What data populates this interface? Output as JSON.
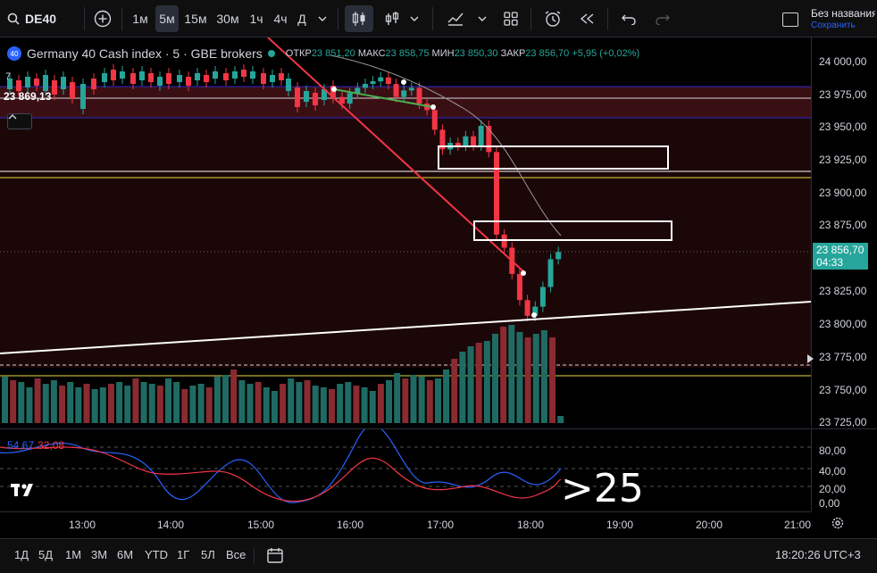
{
  "toolbar": {
    "symbol": "DE40",
    "intervals": [
      "1м",
      "5м",
      "15м",
      "30м",
      "1ч",
      "4ч",
      "Д"
    ],
    "active_interval": "5м",
    "account_name": "Без названия",
    "account_status": "Сохранить"
  },
  "legend": {
    "badge": "40",
    "title": "Germany 40 Cash index · 5 · GBE brokers",
    "open_label": "ОТКР",
    "open": "23 851,20",
    "high_label": "МАКС",
    "high": "23 858,75",
    "low_label": "МИН",
    "low": "23 850,30",
    "close_label": "ЗАКР",
    "close": "23 856,70",
    "change": "+5,95 (+0,02%)",
    "sub_count": "7"
  },
  "level_label": "23 869,13",
  "price_axis": {
    "ticks": [
      "24 000,00",
      "23 975,00",
      "23 950,00",
      "23 925,00",
      "23 900,00",
      "23 875,00",
      "23 850,00",
      "23 825,00",
      "23 800,00",
      "23 775,00",
      "23 750,00",
      "23 725,00"
    ],
    "current_price": "23 856,70",
    "countdown": "04:33"
  },
  "oscillator": {
    "value_k": "54,67",
    "value_d": "32,08",
    "ticks": [
      "80,00",
      "40,00",
      "20,00",
      "0,00"
    ],
    "annotation": ">25"
  },
  "time_axis": {
    "ticks": [
      "13:00",
      "14:00",
      "15:00",
      "16:00",
      "17:00",
      "18:00",
      "19:00",
      "20:00",
      "21:00"
    ]
  },
  "bottom": {
    "ranges": [
      "1Д",
      "5Д",
      "1М",
      "3М",
      "6М",
      "YTD",
      "1Г",
      "5Л",
      "Все"
    ],
    "clock": "18:20:26 UTC+3"
  },
  "colors": {
    "up": "#26a69a",
    "down": "#f23645",
    "accent": "#2962ff"
  },
  "chart_data": {
    "type": "candlestick",
    "title": "Germany 40 Cash index · 5 · GBE brokers",
    "x": [
      "16:00",
      "16:05",
      "16:10",
      "16:15",
      "16:20",
      "16:25",
      "16:30",
      "16:35",
      "16:40",
      "16:45",
      "16:50",
      "16:55",
      "17:00",
      "17:05",
      "17:10",
      "17:15",
      "17:20",
      "17:25",
      "17:30",
      "17:35",
      "17:40",
      "17:45",
      "17:50",
      "17:55",
      "18:00",
      "18:05",
      "18:10",
      "18:15",
      "18:20"
    ],
    "open": [
      23975,
      23970,
      23978,
      23982,
      23985,
      23987,
      23990,
      23985,
      23975,
      23980,
      23982,
      23970,
      23965,
      23950,
      23935,
      23940,
      23938,
      23945,
      23938,
      23953,
      23933,
      23870,
      23860,
      23840,
      23820,
      23808,
      23815,
      23830,
      23851.2
    ],
    "close": [
      23970,
      23978,
      23982,
      23985,
      23987,
      23990,
      23985,
      23975,
      23980,
      23982,
      23970,
      23965,
      23950,
      23935,
      23940,
      23938,
      23945,
      23938,
      23953,
      23933,
      23870,
      23860,
      23840,
      23820,
      23808,
      23815,
      23830,
      23851.2,
      23856.7
    ],
    "ylim": [
      23720,
      24010
    ],
    "current_price": 23856.7
  }
}
